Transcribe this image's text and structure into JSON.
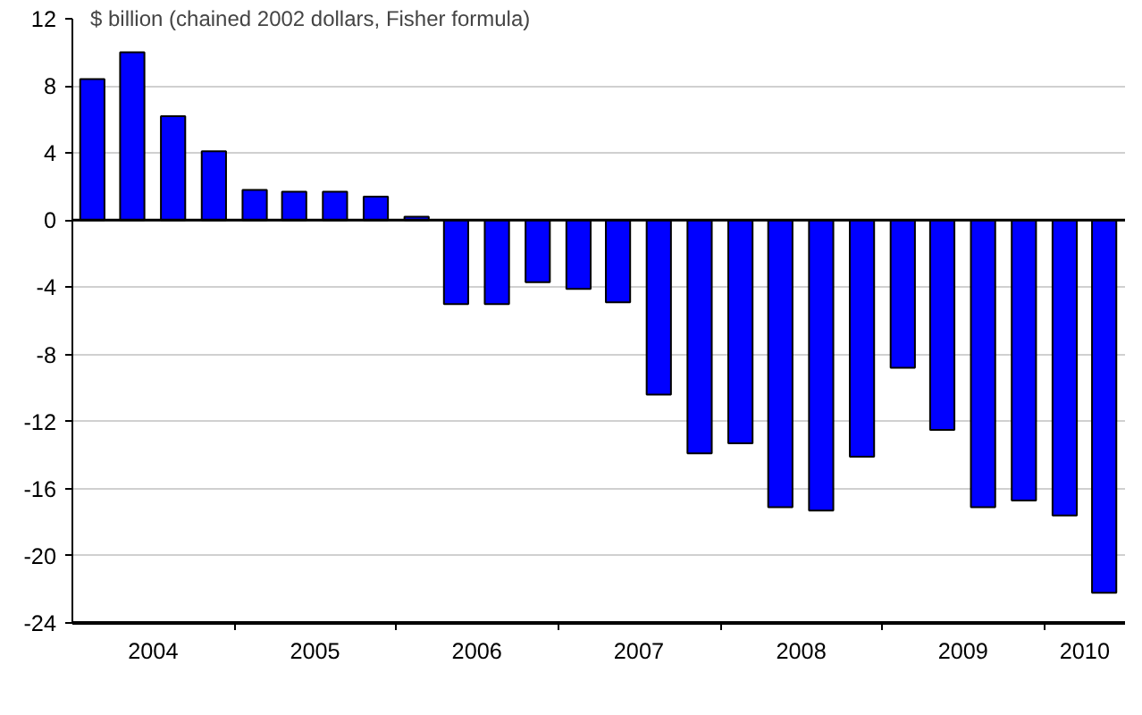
{
  "chart_data": {
    "type": "bar",
    "title": "$ billion (chained 2002 dollars, Fisher formula)",
    "x": [
      "2004-02-15",
      "2004-05-15",
      "2004-08-15",
      "2004-11-15",
      "2005-02-15",
      "2005-05-15",
      "2005-08-15",
      "2005-11-15",
      "2006-02-15",
      "2006-05-15",
      "2006-08-15",
      "2006-11-15",
      "2007-02-15",
      "2007-05-15",
      "2007-08-15",
      "2007-11-15",
      "2008-02-15",
      "2008-05-15",
      "2008-08-15",
      "2008-11-15",
      "2009-02-15",
      "2009-05-15",
      "2009-08-15",
      "2009-11-15",
      "2010-02-15",
      "2010-05-15"
    ],
    "values": [
      8.4,
      10.0,
      6.2,
      4.1,
      1.8,
      1.7,
      1.7,
      1.4,
      0.2,
      -5.0,
      -5.0,
      -3.7,
      -4.1,
      -4.9,
      -10.4,
      -13.9,
      -13.3,
      -17.1,
      -17.3,
      -14.1,
      -8.8,
      -12.5,
      -17.1,
      -16.7,
      -17.6,
      -22.2
    ],
    "color": "#0000ff",
    "xlim": [
      "2004-01-01",
      "2010-07-01"
    ],
    "xticks": [
      {
        "value": "2004-07-01",
        "label": "2004"
      },
      {
        "value": "2005-07-01",
        "label": "2005"
      },
      {
        "value": "2006-07-01",
        "label": "2006"
      },
      {
        "value": "2007-07-01",
        "label": "2007"
      },
      {
        "value": "2008-07-01",
        "label": "2008"
      },
      {
        "value": "2009-07-01",
        "label": "2009"
      },
      {
        "value": "2010-04-01",
        "label": "2010"
      },
      {
        "value": "2005-01-01",
        "label": null
      },
      {
        "value": "2006-01-01",
        "label": null
      },
      {
        "value": "2007-01-01",
        "label": null
      },
      {
        "value": "2008-01-01",
        "label": null
      },
      {
        "value": "2009-01-01",
        "label": null
      },
      {
        "value": "2010-01-01",
        "label": null
      }
    ],
    "ylim": [
      -24,
      12
    ],
    "yticks": [
      -24,
      -20,
      -16,
      -12,
      -8,
      -4,
      0,
      4,
      8,
      12
    ],
    "grid": "y",
    "ref_lines": [
      {
        "axis": "y",
        "value": 0,
        "color": "#000000"
      }
    ]
  }
}
